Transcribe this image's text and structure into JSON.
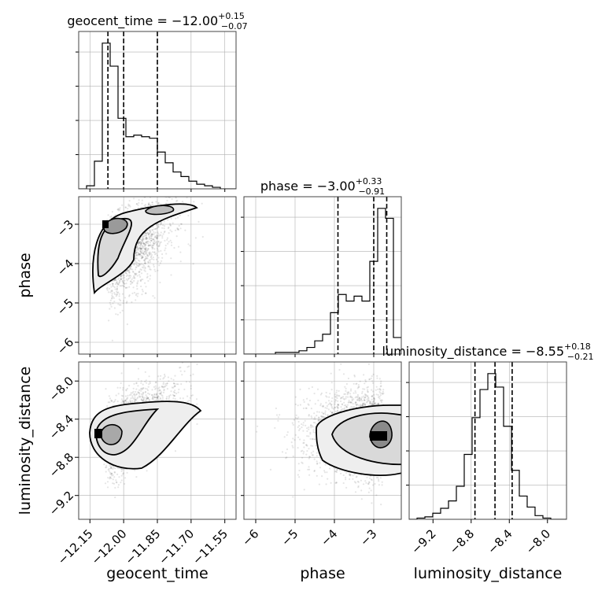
{
  "chart_data": {
    "type": "corner",
    "parameters": [
      "geocent_time",
      "phase",
      "luminosity_distance"
    ],
    "axis_labels": [
      "geocent_time",
      "phase",
      "luminosity_distance"
    ],
    "ranges": [
      [
        -12.2,
        -11.5
      ],
      [
        -6.3,
        -2.3
      ],
      [
        -9.45,
        -7.8
      ]
    ],
    "ticks": [
      {
        "values": [
          -12.15,
          -12.0,
          -11.85,
          -11.7,
          -11.55
        ],
        "labels": [
          "−12.15",
          "−12.00",
          "−11.85",
          "−11.70",
          "−11.55"
        ]
      },
      {
        "values": [
          -6,
          -5,
          -4,
          -3
        ],
        "labels": [
          "−6",
          "−5",
          "−4",
          "−3"
        ]
      },
      {
        "values": [
          -9.2,
          -8.8,
          -8.4,
          -8.0
        ],
        "labels": [
          "−9.2",
          "−8.8",
          "−8.4",
          "−8.0"
        ]
      }
    ],
    "titles": [
      {
        "main": "geocent_time = −12.00",
        "sup": "+0.15",
        "sub": "−0.07"
      },
      {
        "main": "phase = −3.00",
        "sup": "+0.33",
        "sub": "−0.91"
      },
      {
        "main": "luminosity_distance = −8.55",
        "sup": "+0.18",
        "sub": "−0.21"
      }
    ],
    "quantiles": [
      [
        -12.07,
        -12.0,
        -11.85
      ],
      [
        -3.91,
        -3.0,
        -2.67
      ],
      [
        -8.76,
        -8.55,
        -8.37
      ]
    ],
    "histograms": [
      {
        "edges": [
          -12.2,
          -12.165,
          -12.13,
          -12.095,
          -12.06,
          -12.025,
          -11.99,
          -11.955,
          -11.92,
          -11.885,
          -11.85,
          -11.815,
          -11.78,
          -11.745,
          -11.71,
          -11.675,
          -11.64,
          -11.605,
          -11.57,
          -11.535,
          -11.5
        ],
        "counts": [
          0,
          2,
          18,
          95,
          80,
          46,
          34,
          35,
          34,
          33,
          24,
          17,
          11,
          8,
          5,
          3,
          2,
          1,
          0,
          0
        ]
      },
      {
        "edges": [
          -6.3,
          -6.1,
          -5.9,
          -5.7,
          -5.5,
          -5.3,
          -5.1,
          -4.9,
          -4.7,
          -4.5,
          -4.3,
          -4.1,
          -3.9,
          -3.7,
          -3.5,
          -3.3,
          -3.1,
          -2.9,
          -2.7,
          -2.5,
          -2.3
        ],
        "counts": [
          0,
          0,
          0,
          0,
          1,
          1,
          1,
          2,
          4,
          8,
          12,
          25,
          36,
          32,
          35,
          32,
          56,
          88,
          82,
          10
        ]
      },
      {
        "edges": [
          -9.45,
          -9.3675,
          -9.285,
          -9.2025,
          -9.12,
          -9.0375,
          -8.955,
          -8.8725,
          -8.79,
          -8.7075,
          -8.625,
          -8.5425,
          -8.46,
          -8.3775,
          -8.295,
          -8.2125,
          -8.13,
          -8.0475,
          -7.965,
          -7.8825,
          -7.8
        ],
        "counts": [
          0,
          1,
          2,
          5,
          9,
          15,
          27,
          53,
          83,
          106,
          119,
          108,
          76,
          40,
          19,
          10,
          3,
          1,
          0,
          0
        ]
      }
    ],
    "grid": true
  }
}
